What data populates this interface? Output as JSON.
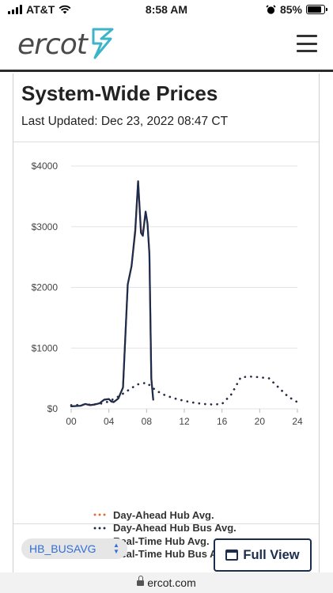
{
  "status_bar": {
    "carrier": "AT&T",
    "time": "8:58 AM",
    "battery": "85%",
    "battery_level": 0.85,
    "icons": [
      "signal-icon",
      "wifi-icon",
      "alarm-icon",
      "battery-icon"
    ]
  },
  "header": {
    "logo_text": "ercot",
    "menu_icon": "hamburger-menu-icon"
  },
  "card": {
    "title": "System-Wide Prices",
    "last_updated": "Last Updated: Dec 23, 2022 08:47 CT"
  },
  "chart_data": {
    "type": "line",
    "title": "",
    "xlabel": "",
    "ylabel": "",
    "xlim": [
      0,
      24
    ],
    "ylim": [
      0,
      4000
    ],
    "x_ticks": [
      "00",
      "04",
      "08",
      "12",
      "16",
      "20",
      "24"
    ],
    "y_ticks": [
      "$0",
      "$1000",
      "$2000",
      "$3000",
      "$4000"
    ],
    "grid": true,
    "legend_position": "bottom",
    "series": [
      {
        "name": "Day-Ahead Hub Avg.",
        "style": "dotted",
        "color": "#e06a3a",
        "points": [
          [
            0,
            60
          ],
          [
            1,
            65
          ],
          [
            2,
            70
          ],
          [
            3,
            80
          ],
          [
            4,
            120
          ],
          [
            5,
            200
          ],
          [
            6,
            300
          ],
          [
            7,
            400
          ],
          [
            8,
            430
          ],
          [
            9,
            300
          ],
          [
            10,
            220
          ],
          [
            11,
            170
          ],
          [
            12,
            130
          ],
          [
            13,
            100
          ],
          [
            14,
            80
          ],
          [
            15,
            70
          ],
          [
            16,
            80
          ],
          [
            17,
            240
          ],
          [
            18,
            520
          ],
          [
            19,
            530
          ],
          [
            20,
            520
          ],
          [
            21,
            500
          ],
          [
            22,
            350
          ],
          [
            23,
            200
          ],
          [
            24,
            110
          ]
        ]
      },
      {
        "name": "Day-Ahead Hub Bus Avg.",
        "style": "dotted",
        "color": "#1b2d4f",
        "points": [
          [
            0,
            60
          ],
          [
            1,
            65
          ],
          [
            2,
            70
          ],
          [
            3,
            80
          ],
          [
            4,
            120
          ],
          [
            5,
            200
          ],
          [
            6,
            300
          ],
          [
            7,
            400
          ],
          [
            8,
            430
          ],
          [
            9,
            300
          ],
          [
            10,
            220
          ],
          [
            11,
            170
          ],
          [
            12,
            130
          ],
          [
            13,
            100
          ],
          [
            14,
            80
          ],
          [
            15,
            70
          ],
          [
            16,
            80
          ],
          [
            17,
            240
          ],
          [
            18,
            520
          ],
          [
            19,
            530
          ],
          [
            20,
            520
          ],
          [
            21,
            500
          ],
          [
            22,
            350
          ],
          [
            23,
            200
          ],
          [
            24,
            110
          ]
        ]
      },
      {
        "name": "Real-Time Hub Avg.",
        "style": "solid",
        "color": "#e06a3a",
        "points": [
          [
            0,
            40
          ],
          [
            1,
            50
          ],
          [
            1.5,
            80
          ],
          [
            2,
            60
          ],
          [
            2.5,
            70
          ],
          [
            3,
            90
          ],
          [
            3.5,
            150
          ],
          [
            4,
            160
          ],
          [
            4.25,
            120
          ],
          [
            4.5,
            110
          ],
          [
            5,
            170
          ],
          [
            5.5,
            350
          ],
          [
            6,
            2050
          ],
          [
            6.4,
            2350
          ],
          [
            6.8,
            2900
          ],
          [
            7.1,
            3750
          ],
          [
            7.4,
            2950
          ],
          [
            7.6,
            2900
          ],
          [
            7.9,
            3250
          ],
          [
            8.1,
            3050
          ],
          [
            8.3,
            2550
          ],
          [
            8.5,
            500
          ],
          [
            8.7,
            150
          ]
        ]
      },
      {
        "name": "Real-Time Hub Bus Avg.",
        "style": "solid",
        "color": "#1b2d4f",
        "points": [
          [
            0,
            40
          ],
          [
            1,
            50
          ],
          [
            1.5,
            80
          ],
          [
            2,
            60
          ],
          [
            2.5,
            70
          ],
          [
            3,
            90
          ],
          [
            3.5,
            150
          ],
          [
            4,
            160
          ],
          [
            4.25,
            120
          ],
          [
            4.5,
            110
          ],
          [
            5,
            170
          ],
          [
            5.5,
            350
          ],
          [
            6,
            2050
          ],
          [
            6.4,
            2350
          ],
          [
            6.8,
            2950
          ],
          [
            7.1,
            3750
          ],
          [
            7.4,
            2900
          ],
          [
            7.6,
            2850
          ],
          [
            7.9,
            3250
          ],
          [
            8.1,
            3050
          ],
          [
            8.3,
            2550
          ],
          [
            8.5,
            500
          ],
          [
            8.7,
            150
          ]
        ]
      }
    ]
  },
  "controls": {
    "select_value": "HB_BUSAVG",
    "full_view_label": "Full View"
  },
  "urlbar": {
    "domain": "ercot.com"
  }
}
